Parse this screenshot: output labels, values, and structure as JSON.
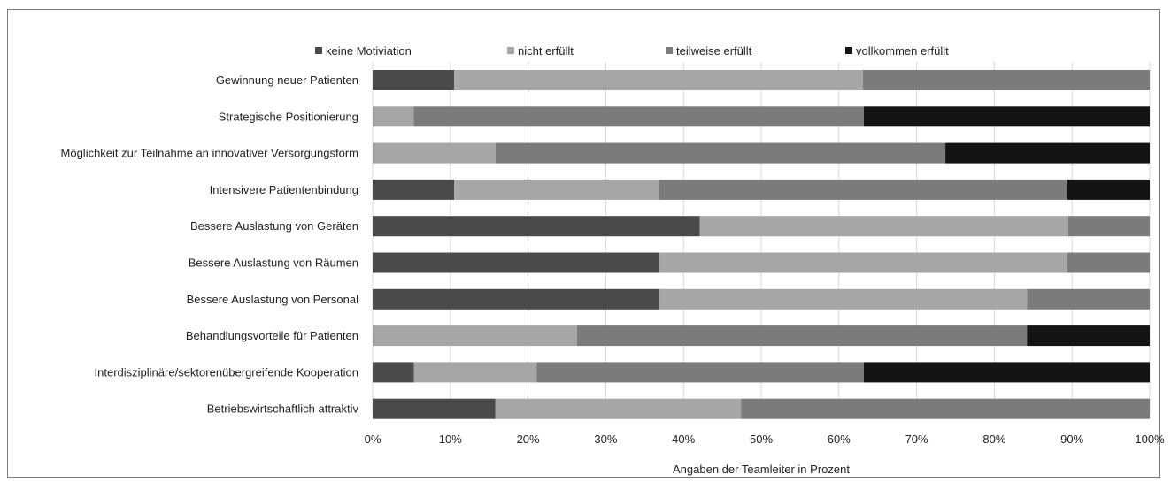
{
  "chart_data": {
    "type": "bar",
    "orientation": "horizontal",
    "stacked": "percent",
    "xlabel": "Angaben der Teamleiter in Prozent",
    "ylabel": "",
    "xlim": [
      0,
      100
    ],
    "x_ticks": [
      "0%",
      "10%",
      "20%",
      "30%",
      "40%",
      "50%",
      "60%",
      "70%",
      "80%",
      "90%",
      "100%"
    ],
    "grid": true,
    "legend_position": "top",
    "categories": [
      "Gewinnung neuer Patienten",
      "Strategische Positionierung",
      "Möglichkeit zur Teilnahme an innovativer Versorgungsform",
      "Intensivere Patientenbindung",
      "Bessere Auslastung von Geräten",
      "Bessere Auslastung von Räumen",
      "Bessere Auslastung von Personal",
      "Behandlungsvorteile für Patienten",
      "Interdisziplinäre/sektorenübergreifende Kooperation",
      "Betriebswirtschaftlich attraktiv"
    ],
    "series": [
      {
        "name": "keine Motiviation",
        "color": "#4a4a4a",
        "values": [
          10.5,
          0,
          0,
          10.5,
          42.1,
          36.8,
          36.8,
          0,
          5.3,
          15.8
        ]
      },
      {
        "name": "nicht erfüllt",
        "color": "#a6a6a6",
        "values": [
          52.6,
          5.3,
          15.8,
          26.3,
          47.4,
          52.6,
          47.4,
          26.3,
          15.8,
          31.6
        ]
      },
      {
        "name": "teilweise erfüllt",
        "color": "#7b7b7b",
        "values": [
          36.9,
          57.9,
          57.9,
          52.6,
          10.5,
          10.6,
          15.8,
          57.9,
          42.1,
          52.6
        ]
      },
      {
        "name": "vollkommen erfüllt",
        "color": "#141414",
        "values": [
          0,
          36.8,
          26.3,
          10.6,
          0,
          0,
          0,
          15.8,
          36.8,
          0
        ]
      }
    ]
  }
}
